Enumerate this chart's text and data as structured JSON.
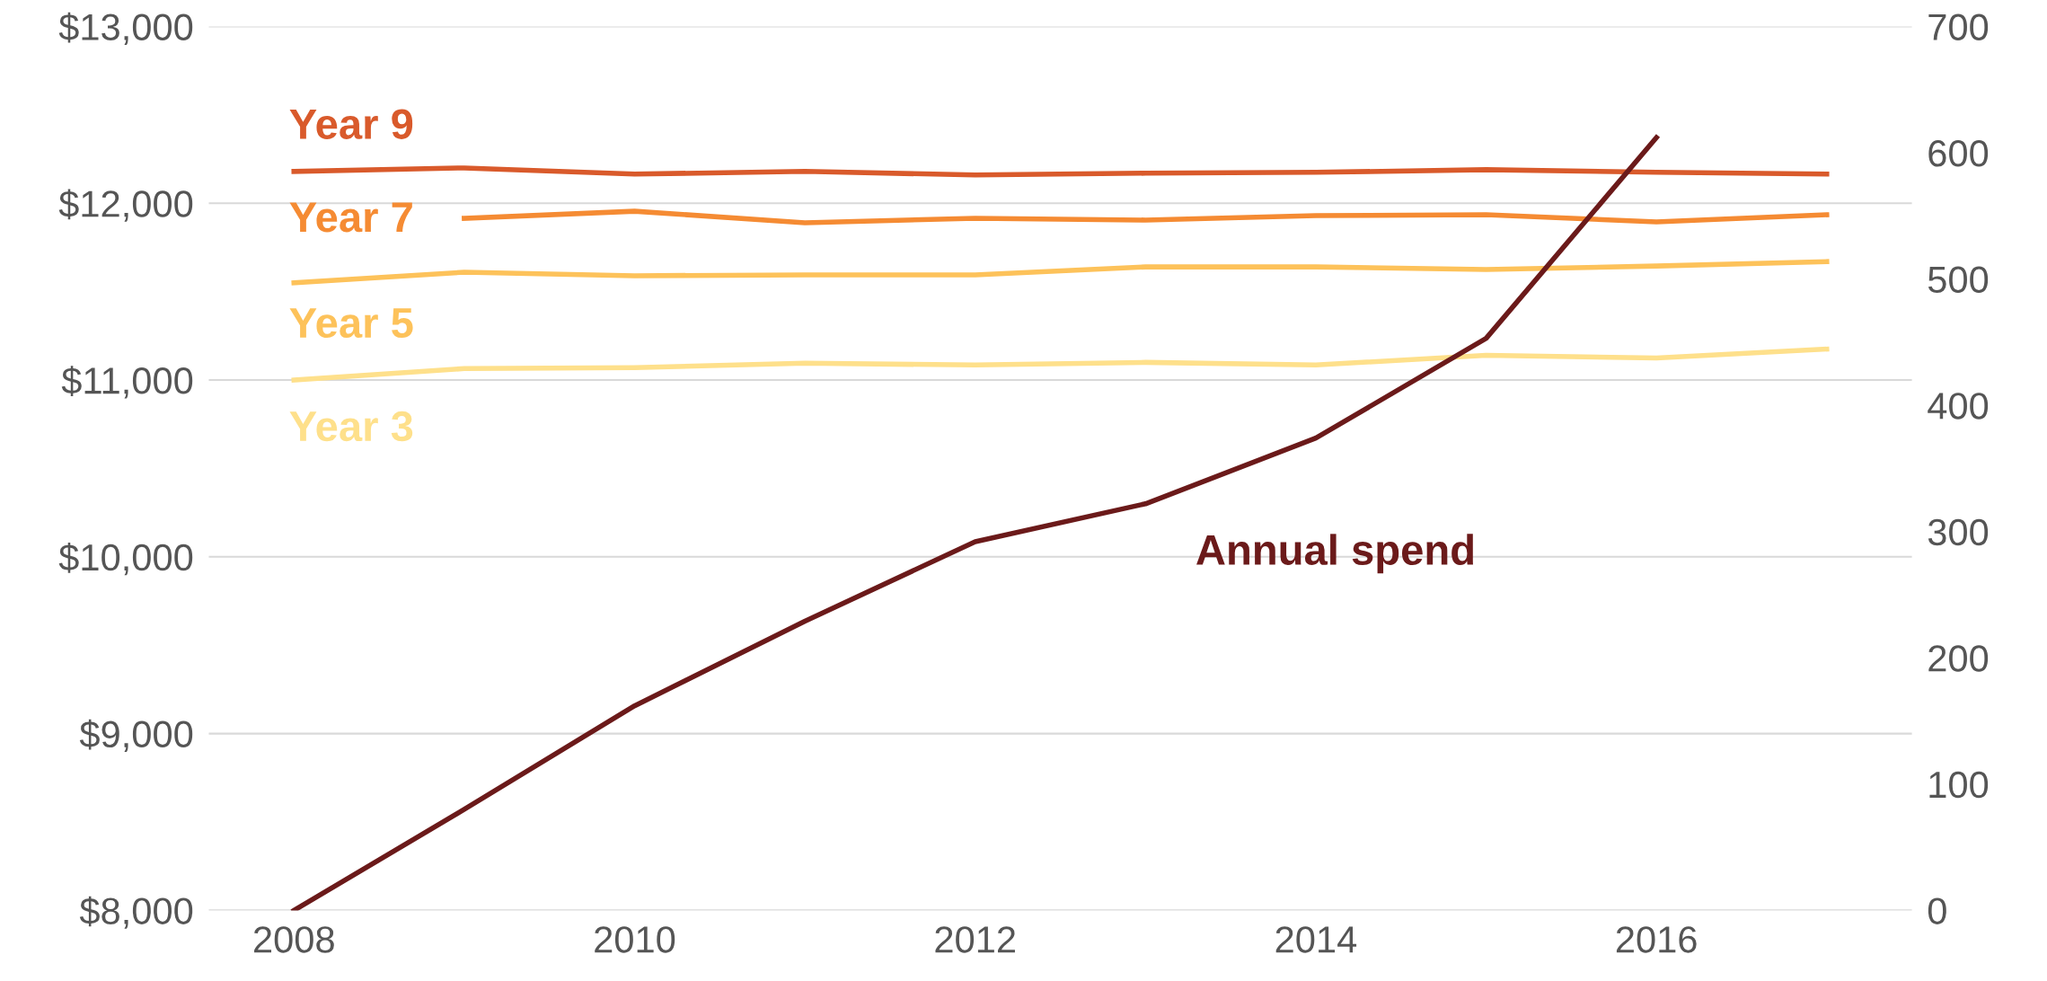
{
  "chart_data": {
    "type": "line",
    "x": [
      2008,
      2009,
      2010,
      2011,
      2012,
      2013,
      2014,
      2015,
      2016,
      2017
    ],
    "series": [
      {
        "name": "Year 9",
        "color": "#d95a2b",
        "values": [
          12180,
          12200,
          12165,
          12180,
          12160,
          12170,
          12175,
          12190,
          12175,
          12165
        ]
      },
      {
        "name": "Year 7",
        "color": "#f58b33",
        "values": [
          null,
          11915,
          11955,
          11890,
          11915,
          11905,
          11930,
          11935,
          11895,
          11935
        ]
      },
      {
        "name": "Year 5",
        "color": "#fdc25a",
        "values": [
          11550,
          11610,
          11590,
          11595,
          11595,
          11640,
          11640,
          11625,
          11645,
          11670
        ]
      },
      {
        "name": "Year 3",
        "color": "#fee08b",
        "values": [
          11000,
          11065,
          11070,
          11095,
          11085,
          11100,
          11085,
          11140,
          11125,
          11175
        ]
      },
      {
        "name": "Annual spend",
        "color": "#6b1a1a",
        "axis": "y2",
        "x": [
          2008,
          2009,
          2010,
          2011,
          2012,
          2013,
          2014,
          2015,
          2016
        ],
        "values": [
          0,
          80,
          162,
          229,
          292,
          322,
          374,
          453,
          612
        ]
      }
    ],
    "xlim": [
      2007.5,
      2017.5
    ],
    "xticks": [
      2008,
      2010,
      2012,
      2014,
      2016
    ],
    "ylim": [
      8000,
      13000
    ],
    "yticks": [
      {
        "value": 8000,
        "label": "$8,000"
      },
      {
        "value": 9000,
        "label": "$9,000"
      },
      {
        "value": 10000,
        "label": "$10,000"
      },
      {
        "value": 11000,
        "label": "$11,000"
      },
      {
        "value": 12000,
        "label": "$12,000"
      },
      {
        "value": 13000,
        "label": "$13,000"
      }
    ],
    "y2lim": [
      0,
      700
    ],
    "y2ticks": [
      0,
      100,
      200,
      300,
      400,
      500,
      600,
      700
    ],
    "grid": "y",
    "legend": false,
    "marker": "none",
    "line_style": "solid"
  }
}
